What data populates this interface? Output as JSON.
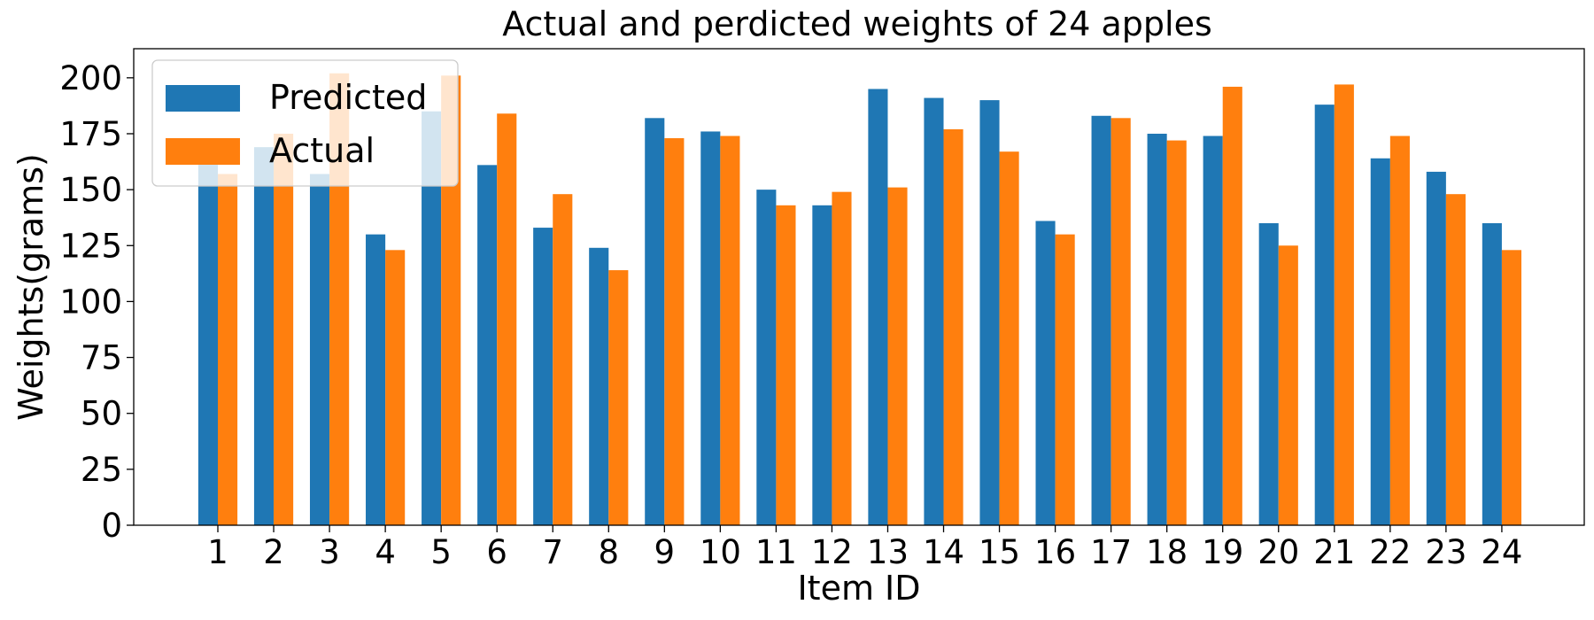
{
  "chart_data": {
    "type": "bar",
    "title": "Actual and perdicted weights of 24 apples",
    "xlabel": "Item ID",
    "ylabel": "Weights(grams)",
    "categories": [
      "1",
      "2",
      "3",
      "4",
      "5",
      "6",
      "7",
      "8",
      "9",
      "10",
      "11",
      "12",
      "13",
      "14",
      "15",
      "16",
      "17",
      "18",
      "19",
      "20",
      "21",
      "22",
      "23",
      "24"
    ],
    "series": [
      {
        "name": "Predicted",
        "color": "#1f77b4",
        "values": [
          162,
          169,
          157,
          130,
          185,
          161,
          133,
          124,
          182,
          176,
          150,
          143,
          195,
          191,
          190,
          136,
          183,
          175,
          174,
          135,
          188,
          164,
          158,
          135
        ]
      },
      {
        "name": "Actual",
        "color": "#ff7f0e",
        "values": [
          157,
          175,
          202,
          123,
          201,
          184,
          148,
          114,
          173,
          174,
          143,
          149,
          151,
          177,
          167,
          130,
          182,
          172,
          196,
          125,
          197,
          174,
          148,
          123
        ]
      }
    ],
    "ylim": [
      0,
      213
    ],
    "yticks": [
      0,
      25,
      50,
      75,
      100,
      125,
      150,
      175,
      200
    ],
    "grid": false,
    "legend_position": "top-left"
  }
}
